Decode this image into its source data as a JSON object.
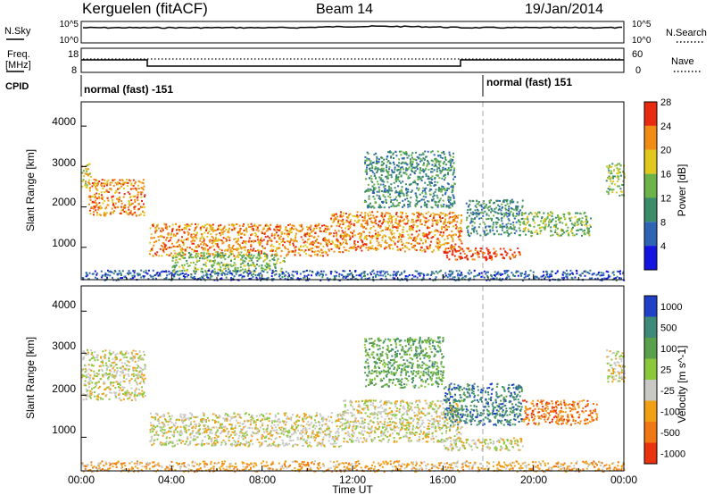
{
  "header": {
    "site": "Kerguelen (fitACF)",
    "beam": "Beam 14",
    "date": "19/Jan/2014"
  },
  "top_panels": {
    "nsky_label": "N.Sky",
    "nsearch_label": "N.Search",
    "count_ticks_left": [
      "10^5",
      "10^0"
    ],
    "count_ticks_right": [
      "10^5",
      "10^0"
    ],
    "freq_label_1": "Freq.",
    "freq_label_2": "[MHz]",
    "freq_ticks": [
      "18",
      "8"
    ],
    "nave_label": "Nave",
    "nave_ticks": [
      "60",
      "0"
    ],
    "cpid_label": "CPID",
    "cpid_left": "normal (fast) -151",
    "cpid_right": "normal (fast) 151"
  },
  "chart_data": [
    {
      "type": "heatmap",
      "title": "",
      "xlabel": "Time UT",
      "ylabel": "Slant Range [km]",
      "x_ticks": [
        "00:00",
        "04:00",
        "08:00",
        "12:00",
        "16:00",
        "20:00",
        "00:00"
      ],
      "y_ticks": [
        "1000",
        "2000",
        "3000",
        "4000"
      ],
      "ylim": [
        200,
        4600
      ],
      "colorbar_label": "Power [dB]",
      "colorbar_ticks": [
        "4",
        "8",
        "12",
        "16",
        "20",
        "24",
        "28"
      ],
      "colorbar_colors": [
        "#1414e0",
        "#2e64b4",
        "#3a8c6a",
        "#6cb44a",
        "#e0c81e",
        "#f08c14",
        "#e82a10"
      ],
      "bands": [
        {
          "t0": 0.0,
          "t1": 0.4,
          "r0": 2500,
          "r1": 3100,
          "level": 4
        },
        {
          "t0": 0.3,
          "t1": 2.8,
          "r0": 1800,
          "r1": 2700,
          "level": 5
        },
        {
          "t0": 3.0,
          "t1": 11.0,
          "r0": 800,
          "r1": 1600,
          "level": 5
        },
        {
          "t0": 11.0,
          "t1": 16.8,
          "r0": 900,
          "r1": 1900,
          "level": 5
        },
        {
          "t0": 4.0,
          "t1": 9.0,
          "r0": 400,
          "r1": 900,
          "level": 3
        },
        {
          "t0": 12.5,
          "t1": 16.5,
          "r0": 2000,
          "r1": 3400,
          "level": 2
        },
        {
          "t0": 16.0,
          "t1": 19.5,
          "r0": 700,
          "r1": 1000,
          "level": 6
        },
        {
          "t0": 17.0,
          "t1": 19.5,
          "r0": 1300,
          "r1": 2200,
          "level": 2
        },
        {
          "t0": 19.5,
          "t1": 22.5,
          "r0": 1300,
          "r1": 1900,
          "level": 3
        },
        {
          "t0": 23.2,
          "t1": 24.0,
          "r0": 2300,
          "r1": 3100,
          "level": 3
        },
        {
          "t0": 0.0,
          "t1": 24.0,
          "r0": 200,
          "r1": 450,
          "level": 1
        }
      ]
    },
    {
      "type": "heatmap",
      "title": "",
      "xlabel": "Time UT",
      "ylabel": "Slant Range [km]",
      "x_ticks": [
        "00:00",
        "04:00",
        "08:00",
        "12:00",
        "16:00",
        "20:00",
        "00:00"
      ],
      "y_ticks": [
        "1000",
        "2000",
        "3000",
        "4000"
      ],
      "ylim": [
        200,
        4600
      ],
      "colorbar_label": "Velocity [m s^-1]",
      "colorbar_ticks": [
        "1000",
        "500",
        "100",
        "25",
        "-25",
        "-100",
        "-500",
        "-1000"
      ],
      "colorbar_colors": [
        "#2040c8",
        "#3e8a78",
        "#58a04c",
        "#8cc83c",
        "#c8c8c4",
        "#f0a014",
        "#f07814",
        "#e83210"
      ],
      "bands": [
        {
          "t0": 0.0,
          "t1": 2.8,
          "r0": 1900,
          "r1": 3100,
          "level": 4
        },
        {
          "t0": 3.0,
          "t1": 11.5,
          "r0": 800,
          "r1": 1600,
          "level": 4
        },
        {
          "t0": 11.5,
          "t1": 16.8,
          "r0": 900,
          "r1": 1900,
          "level": 4
        },
        {
          "t0": 12.5,
          "t1": 16.0,
          "r0": 2200,
          "r1": 3400,
          "level": 2
        },
        {
          "t0": 16.0,
          "t1": 19.5,
          "r0": 1300,
          "r1": 2300,
          "level": 1
        },
        {
          "t0": 19.5,
          "t1": 22.8,
          "r0": 1300,
          "r1": 1900,
          "level": 6
        },
        {
          "t0": 16.0,
          "t1": 19.5,
          "r0": 700,
          "r1": 1000,
          "level": 4
        },
        {
          "t0": 23.2,
          "t1": 24.0,
          "r0": 2300,
          "r1": 3100,
          "level": 4
        },
        {
          "t0": 0.0,
          "t1": 24.0,
          "r0": 200,
          "r1": 450,
          "level": 5
        }
      ]
    }
  ]
}
